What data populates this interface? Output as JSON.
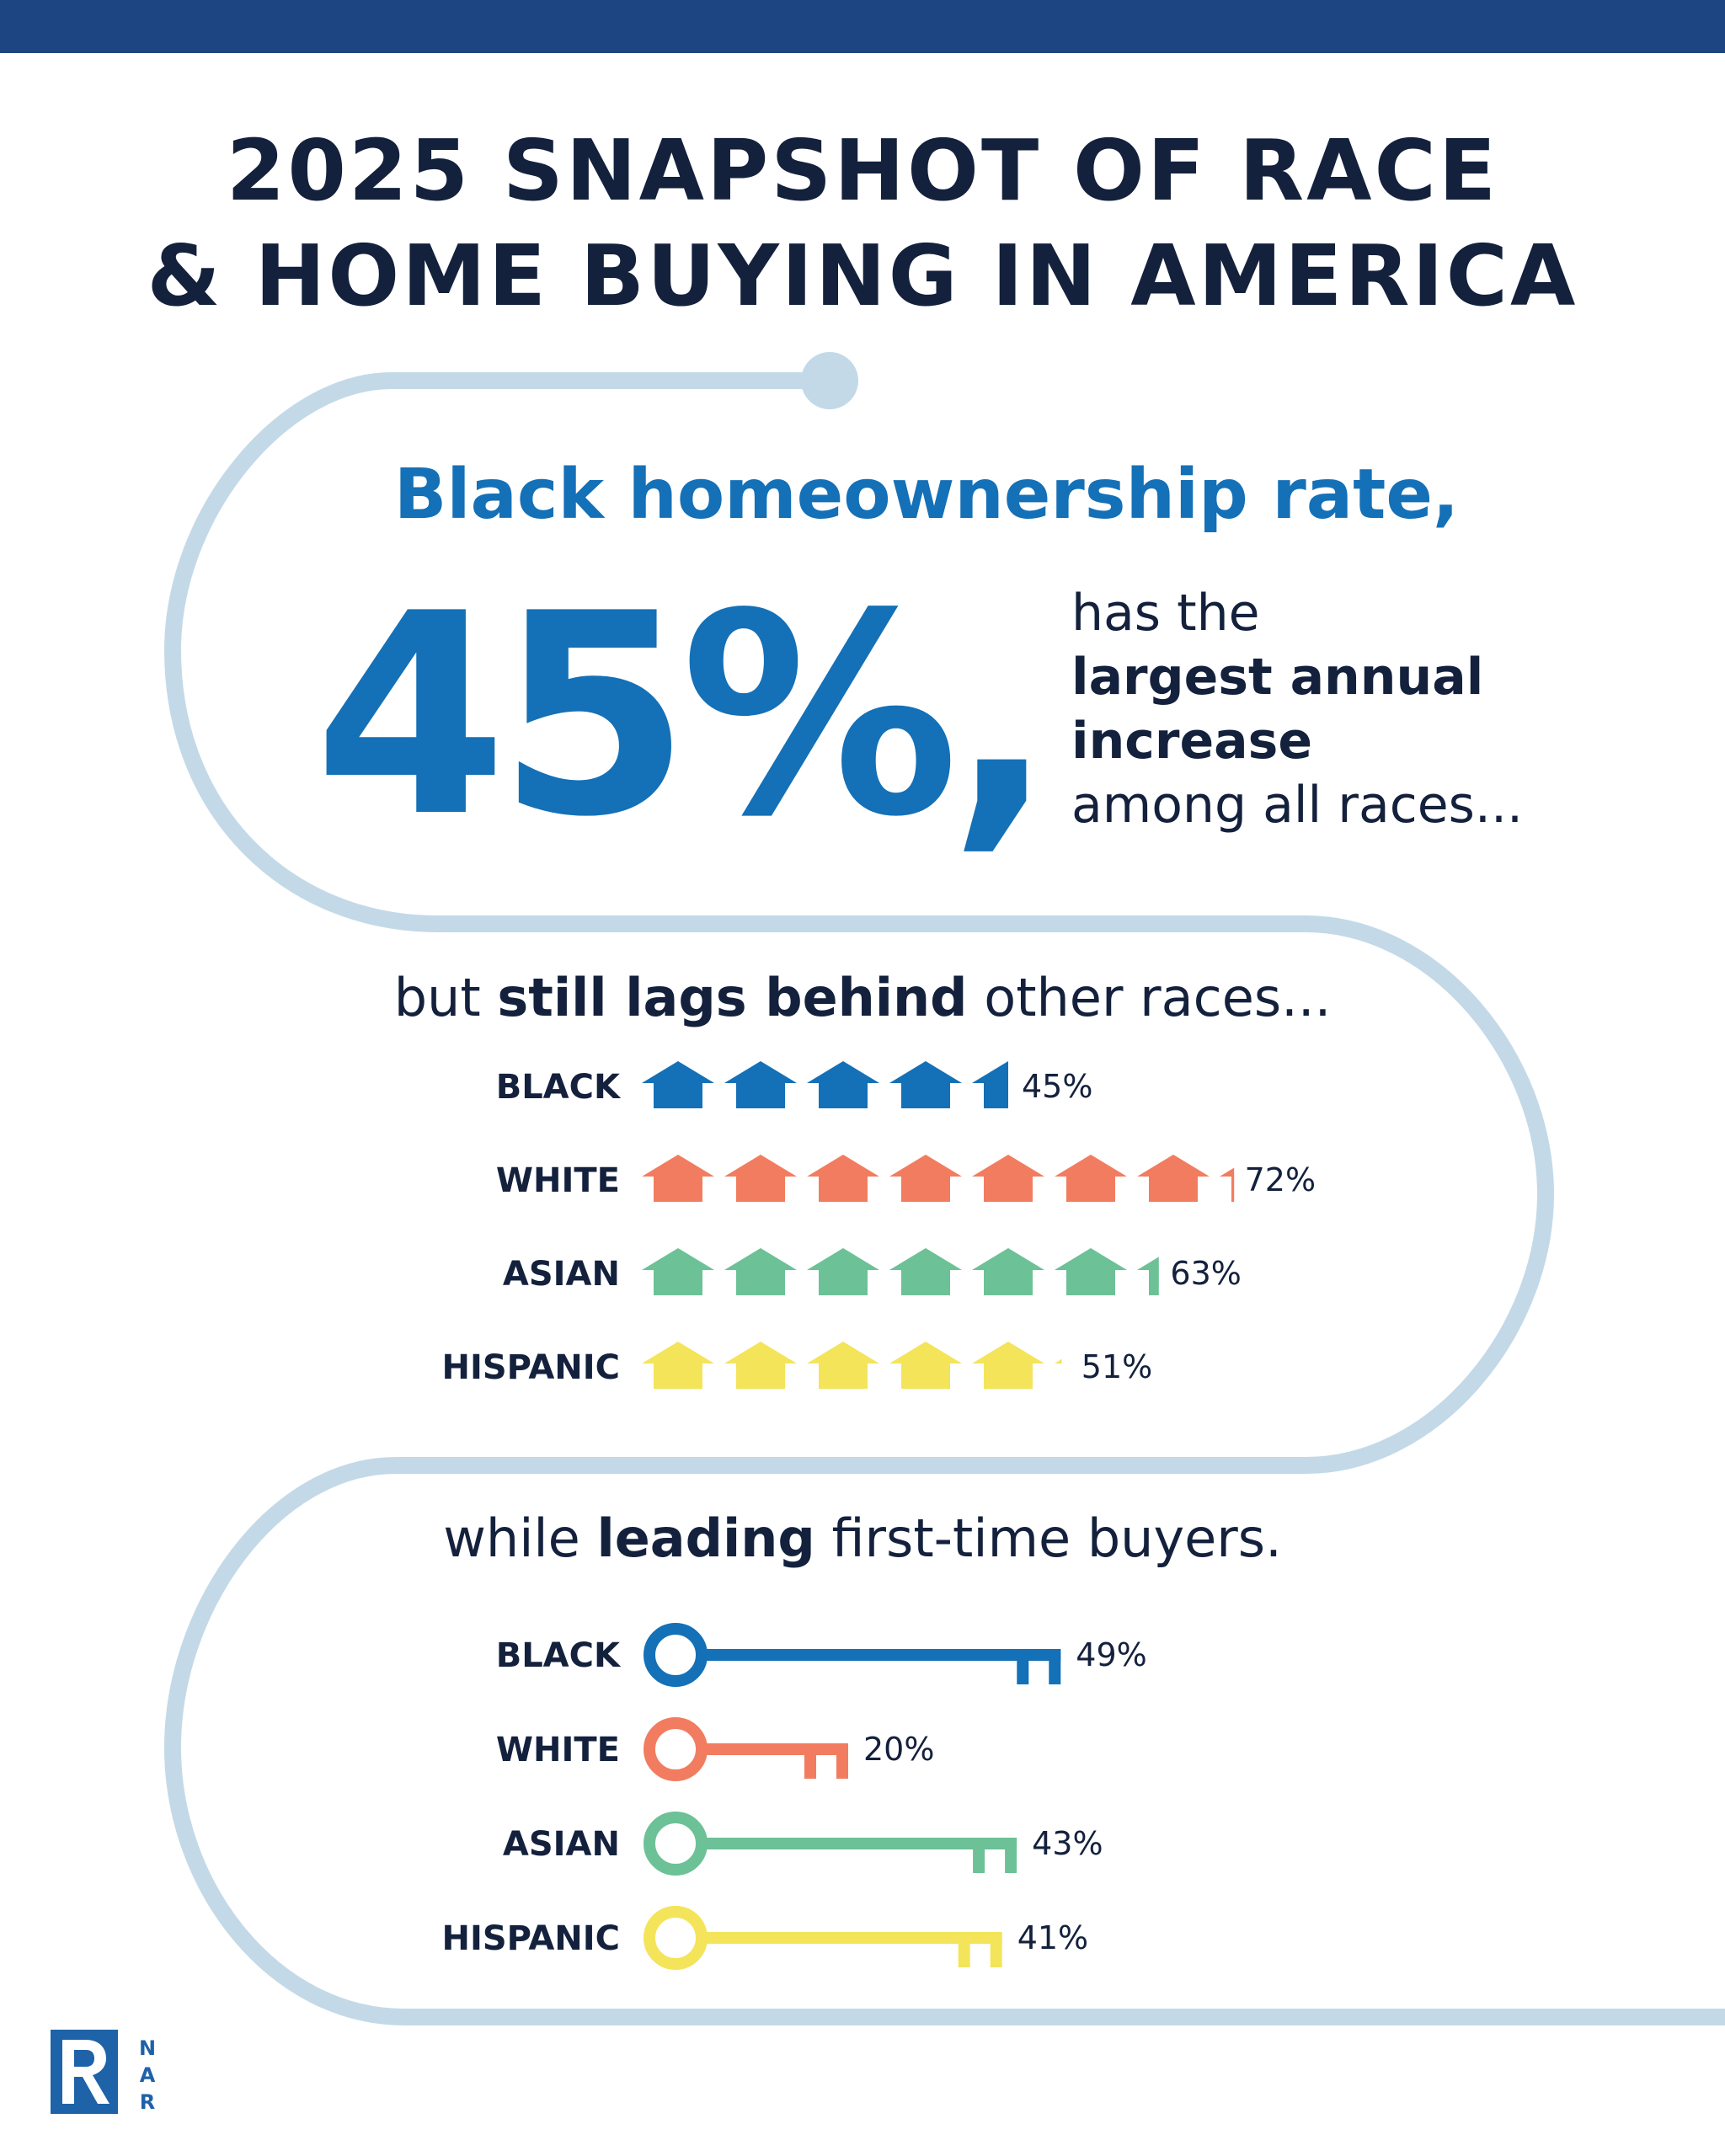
{
  "header": {
    "title_line1": "2025 SNAPSHOT OF RACE",
    "title_line2": "& HOME BUYING IN AMERICA"
  },
  "headline": {
    "subtitle": "Black homeownership rate,",
    "big_number": "45%,",
    "desc_line1": "has the",
    "desc_line2": "largest annual",
    "desc_line3": "increase",
    "desc_line4": "among all races..."
  },
  "section_lags": {
    "prefix": "but ",
    "emphasis": "still lags behind",
    "suffix": " other races..."
  },
  "section_leading": {
    "prefix": "while ",
    "emphasis": "leading",
    "suffix": " first-time buyers."
  },
  "colors": {
    "black": "#1470b7",
    "white": "#f27c60",
    "asian": "#6cc196",
    "hispanic": "#f3e45a",
    "path": "#c3d9e8",
    "title": "#14213d",
    "top_bar": "#1c4582"
  },
  "chart_data": [
    {
      "type": "bar",
      "title": "but still lags behind other races...",
      "encoding": "pictogram-house",
      "categories": [
        "BLACK",
        "WHITE",
        "ASIAN",
        "HISPANIC"
      ],
      "values": [
        45,
        72,
        63,
        51
      ],
      "value_labels": [
        "45%",
        "72%",
        "63%",
        "51%"
      ],
      "unit": "%",
      "units_per_icon": 10,
      "colors": [
        "#1470b7",
        "#f27c60",
        "#6cc196",
        "#f3e45a"
      ]
    },
    {
      "type": "bar",
      "title": "while leading first-time buyers.",
      "encoding": "pictogram-key",
      "categories": [
        "BLACK",
        "WHITE",
        "ASIAN",
        "HISPANIC"
      ],
      "values": [
        49,
        20,
        43,
        41
      ],
      "value_labels": [
        "49%",
        "20%",
        "43%",
        "41%"
      ],
      "unit": "%",
      "colors": [
        "#1470b7",
        "#f27c60",
        "#6cc196",
        "#f3e45a"
      ]
    }
  ],
  "logo": {
    "icon": "realtor-r-logo",
    "letters": [
      "N",
      "A",
      "R"
    ]
  }
}
